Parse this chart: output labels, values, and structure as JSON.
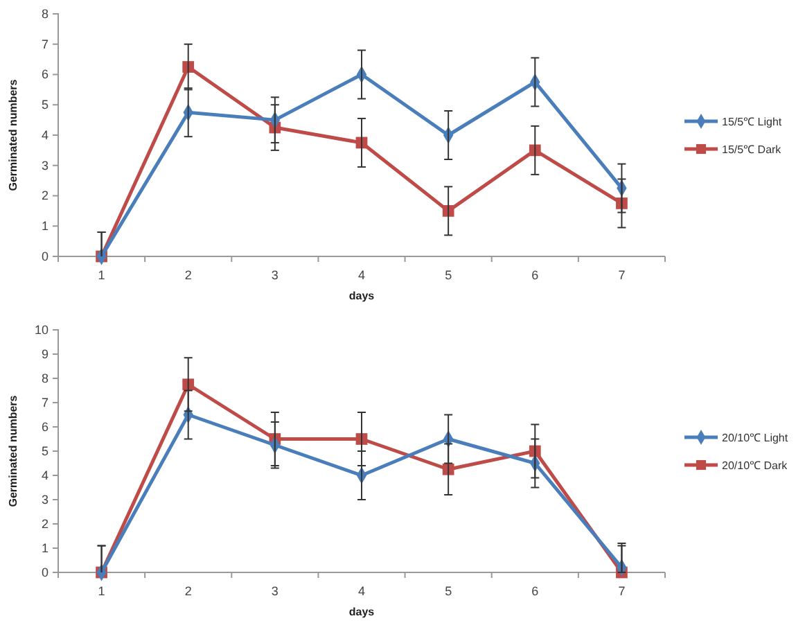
{
  "chart_data": [
    {
      "type": "line",
      "xlabel": "days",
      "ylabel": "Germinated numbers",
      "categories": [
        "1",
        "2",
        "3",
        "4",
        "5",
        "6",
        "7"
      ],
      "ylim": [
        0,
        8
      ],
      "yticks": [
        0,
        1,
        2,
        3,
        4,
        5,
        6,
        7,
        8
      ],
      "grid": false,
      "legend": "right",
      "line_style": "solid",
      "series": [
        {
          "name": "15/5℃ Light",
          "color": "#4a7ebb",
          "marker": "diamond",
          "values": [
            0,
            4.75,
            4.5,
            6.0,
            4.0,
            5.75,
            2.25
          ],
          "errors": [
            [
              0,
              0.8
            ],
            0.8,
            0.75,
            0.8,
            0.8,
            0.8,
            0.8
          ]
        },
        {
          "name": "15/5℃ Dark",
          "color": "#be4b48",
          "marker": "square",
          "values": [
            0,
            6.25,
            4.25,
            3.75,
            1.5,
            3.5,
            1.75
          ],
          "errors": [
            [
              0,
              0.8
            ],
            0.75,
            0.75,
            0.8,
            0.8,
            0.8,
            0.8
          ]
        }
      ]
    },
    {
      "type": "line",
      "xlabel": "days",
      "ylabel": "Germinated numbers",
      "categories": [
        "1",
        "2",
        "3",
        "4",
        "5",
        "6",
        "7"
      ],
      "ylim": [
        0,
        10
      ],
      "yticks": [
        0,
        1,
        2,
        3,
        4,
        5,
        6,
        7,
        8,
        9,
        10
      ],
      "grid": false,
      "legend": "right",
      "line_style": "solid",
      "series": [
        {
          "name": "20/10℃ Light",
          "color": "#4a7ebb",
          "marker": "diamond",
          "values": [
            0,
            6.5,
            5.25,
            4.0,
            5.5,
            4.5,
            0.2
          ],
          "errors": [
            [
              0,
              1.1
            ],
            1.0,
            0.95,
            1.0,
            1.0,
            1.0,
            [
              0,
              1.2
            ]
          ]
        },
        {
          "name": "20/10℃ Dark",
          "color": "#be4b48",
          "marker": "square",
          "values": [
            0,
            7.75,
            5.5,
            5.5,
            4.25,
            5.0,
            0
          ],
          "errors": [
            [
              0,
              1.1
            ],
            1.1,
            1.1,
            1.1,
            1.05,
            1.1,
            [
              0,
              1.1
            ]
          ]
        }
      ]
    }
  ]
}
